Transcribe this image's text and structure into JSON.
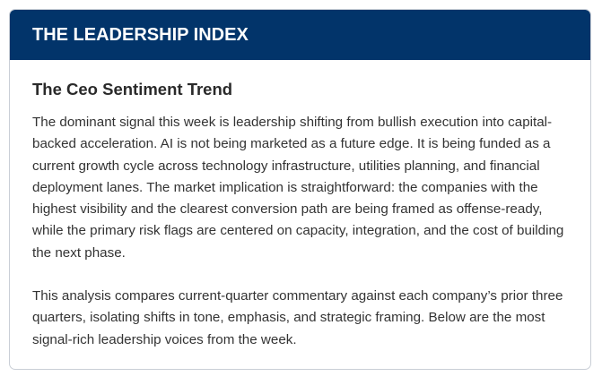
{
  "header": {
    "title": "THE LEADERSHIP INDEX"
  },
  "section": {
    "title": "The Ceo Sentiment Trend",
    "paragraphs": [
      "The dominant signal this week is leadership shifting from bullish execution into capital-backed acceleration. AI is not being marketed as a future edge. It is being funded as a current growth cycle across technology infrastructure, utilities planning, and financial deployment lanes. The market implication is straightforward: the companies with the highest visibility and the clearest conversion path are being framed as offense-ready, while the primary risk flags are centered on capacity, integration, and the cost of building the next phase.",
      "This analysis compares current-quarter commentary against each company’s prior three quarters, isolating shifts in tone, emphasis, and strategic framing. Below are the most signal-rich leadership voices from the week."
    ]
  },
  "colors": {
    "header_bg": "#02346a",
    "header_text": "#ffffff",
    "title_text": "#2a2a2a",
    "body_text": "#333333",
    "border": "#c9ced6"
  }
}
